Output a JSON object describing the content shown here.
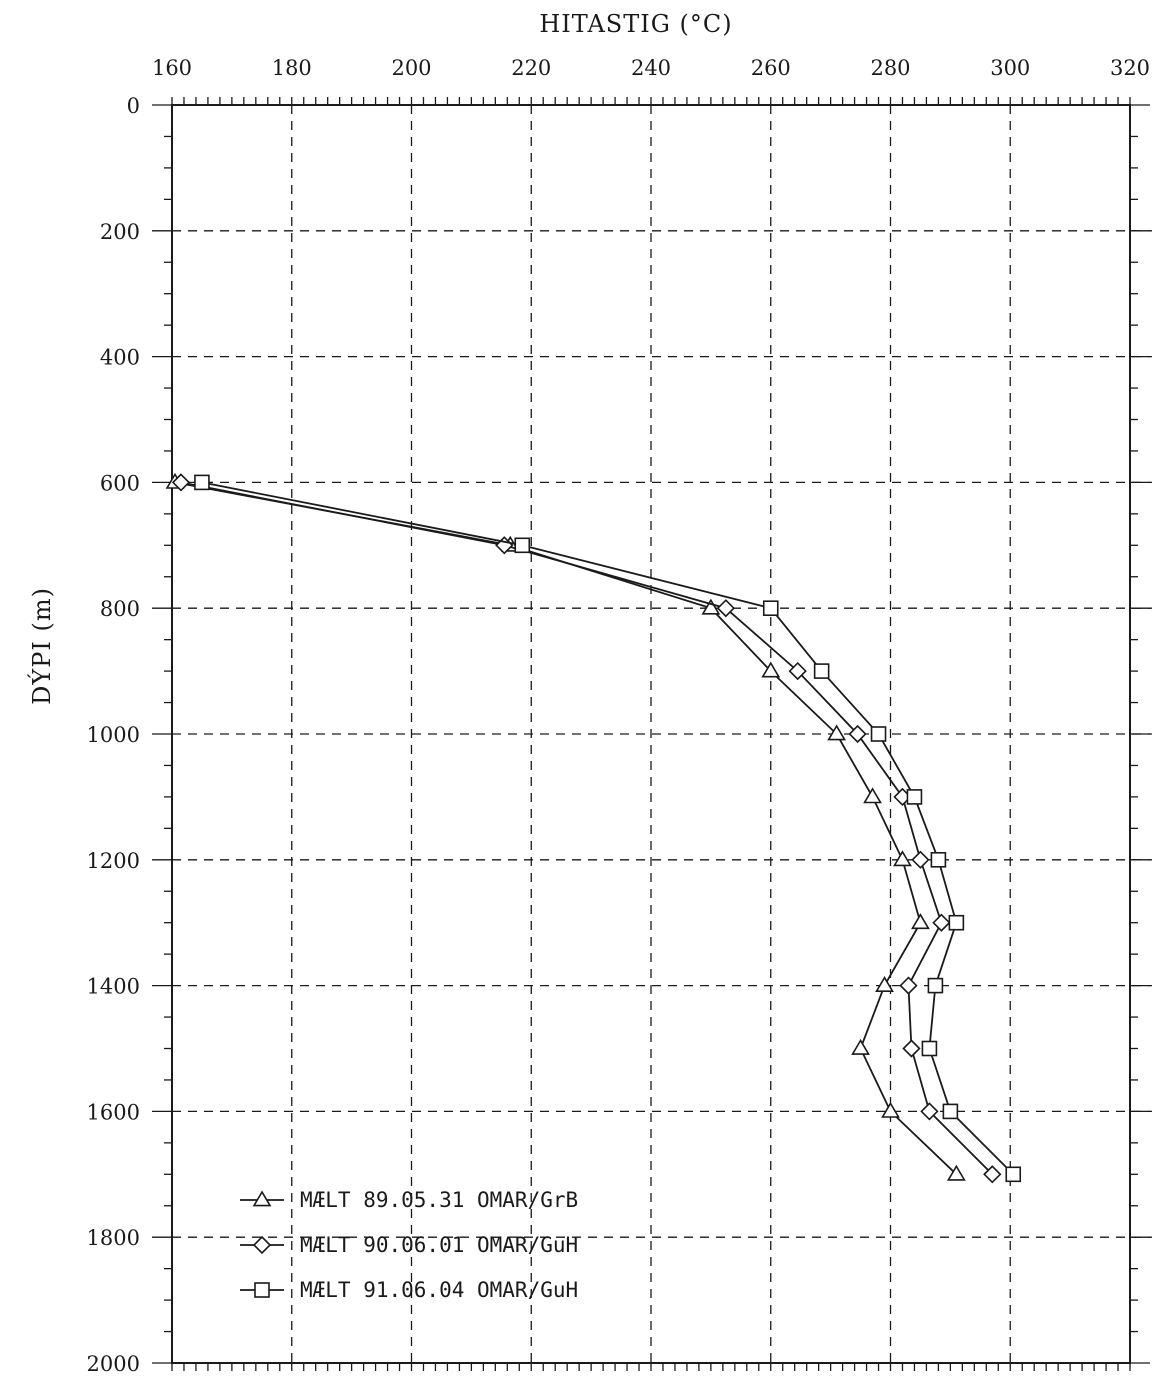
{
  "chart_data": {
    "type": "line",
    "title": "",
    "xlabel": "HITASTIG (°C)",
    "ylabel": "DÝPI (m)",
    "xlim": [
      160,
      320
    ],
    "ylim": [
      0,
      2000
    ],
    "y_inverted": true,
    "x_axis_position": "top",
    "grid": true,
    "x_ticks": [
      "160",
      "180",
      "200",
      "220",
      "240",
      "260",
      "280",
      "300",
      "320"
    ],
    "y_ticks": [
      "0",
      "200",
      "400",
      "600",
      "800",
      "1000",
      "1200",
      "1400",
      "1600",
      "1800",
      "2000"
    ],
    "legend_position": "bottom-left",
    "series": [
      {
        "name": "MÆLT 89.05.31 OMAR/GrB",
        "marker": "triangle",
        "x": [
          160.5,
          216.5,
          250,
          260,
          271,
          277,
          282,
          285,
          279,
          275,
          280,
          291
        ],
        "y": [
          600,
          700,
          800,
          900,
          1000,
          1100,
          1200,
          1300,
          1400,
          1500,
          1600,
          1700
        ]
      },
      {
        "name": "MÆLT 90.06.01 OMAR/GuH",
        "marker": "diamond",
        "x": [
          161.5,
          215.5,
          252.5,
          264.5,
          274.5,
          282,
          285,
          288.5,
          283,
          283.5,
          286.5,
          297
        ],
        "y": [
          600,
          700,
          800,
          900,
          1000,
          1100,
          1200,
          1300,
          1400,
          1500,
          1600,
          1700
        ]
      },
      {
        "name": "MÆLT 91.06.04 OMAR/GuH",
        "marker": "square",
        "x": [
          165,
          218.5,
          260,
          268.5,
          278,
          284,
          288,
          291,
          287.5,
          286.5,
          290,
          300.5
        ],
        "y": [
          600,
          700,
          800,
          900,
          1000,
          1100,
          1200,
          1300,
          1400,
          1500,
          1600,
          1700
        ]
      }
    ]
  }
}
